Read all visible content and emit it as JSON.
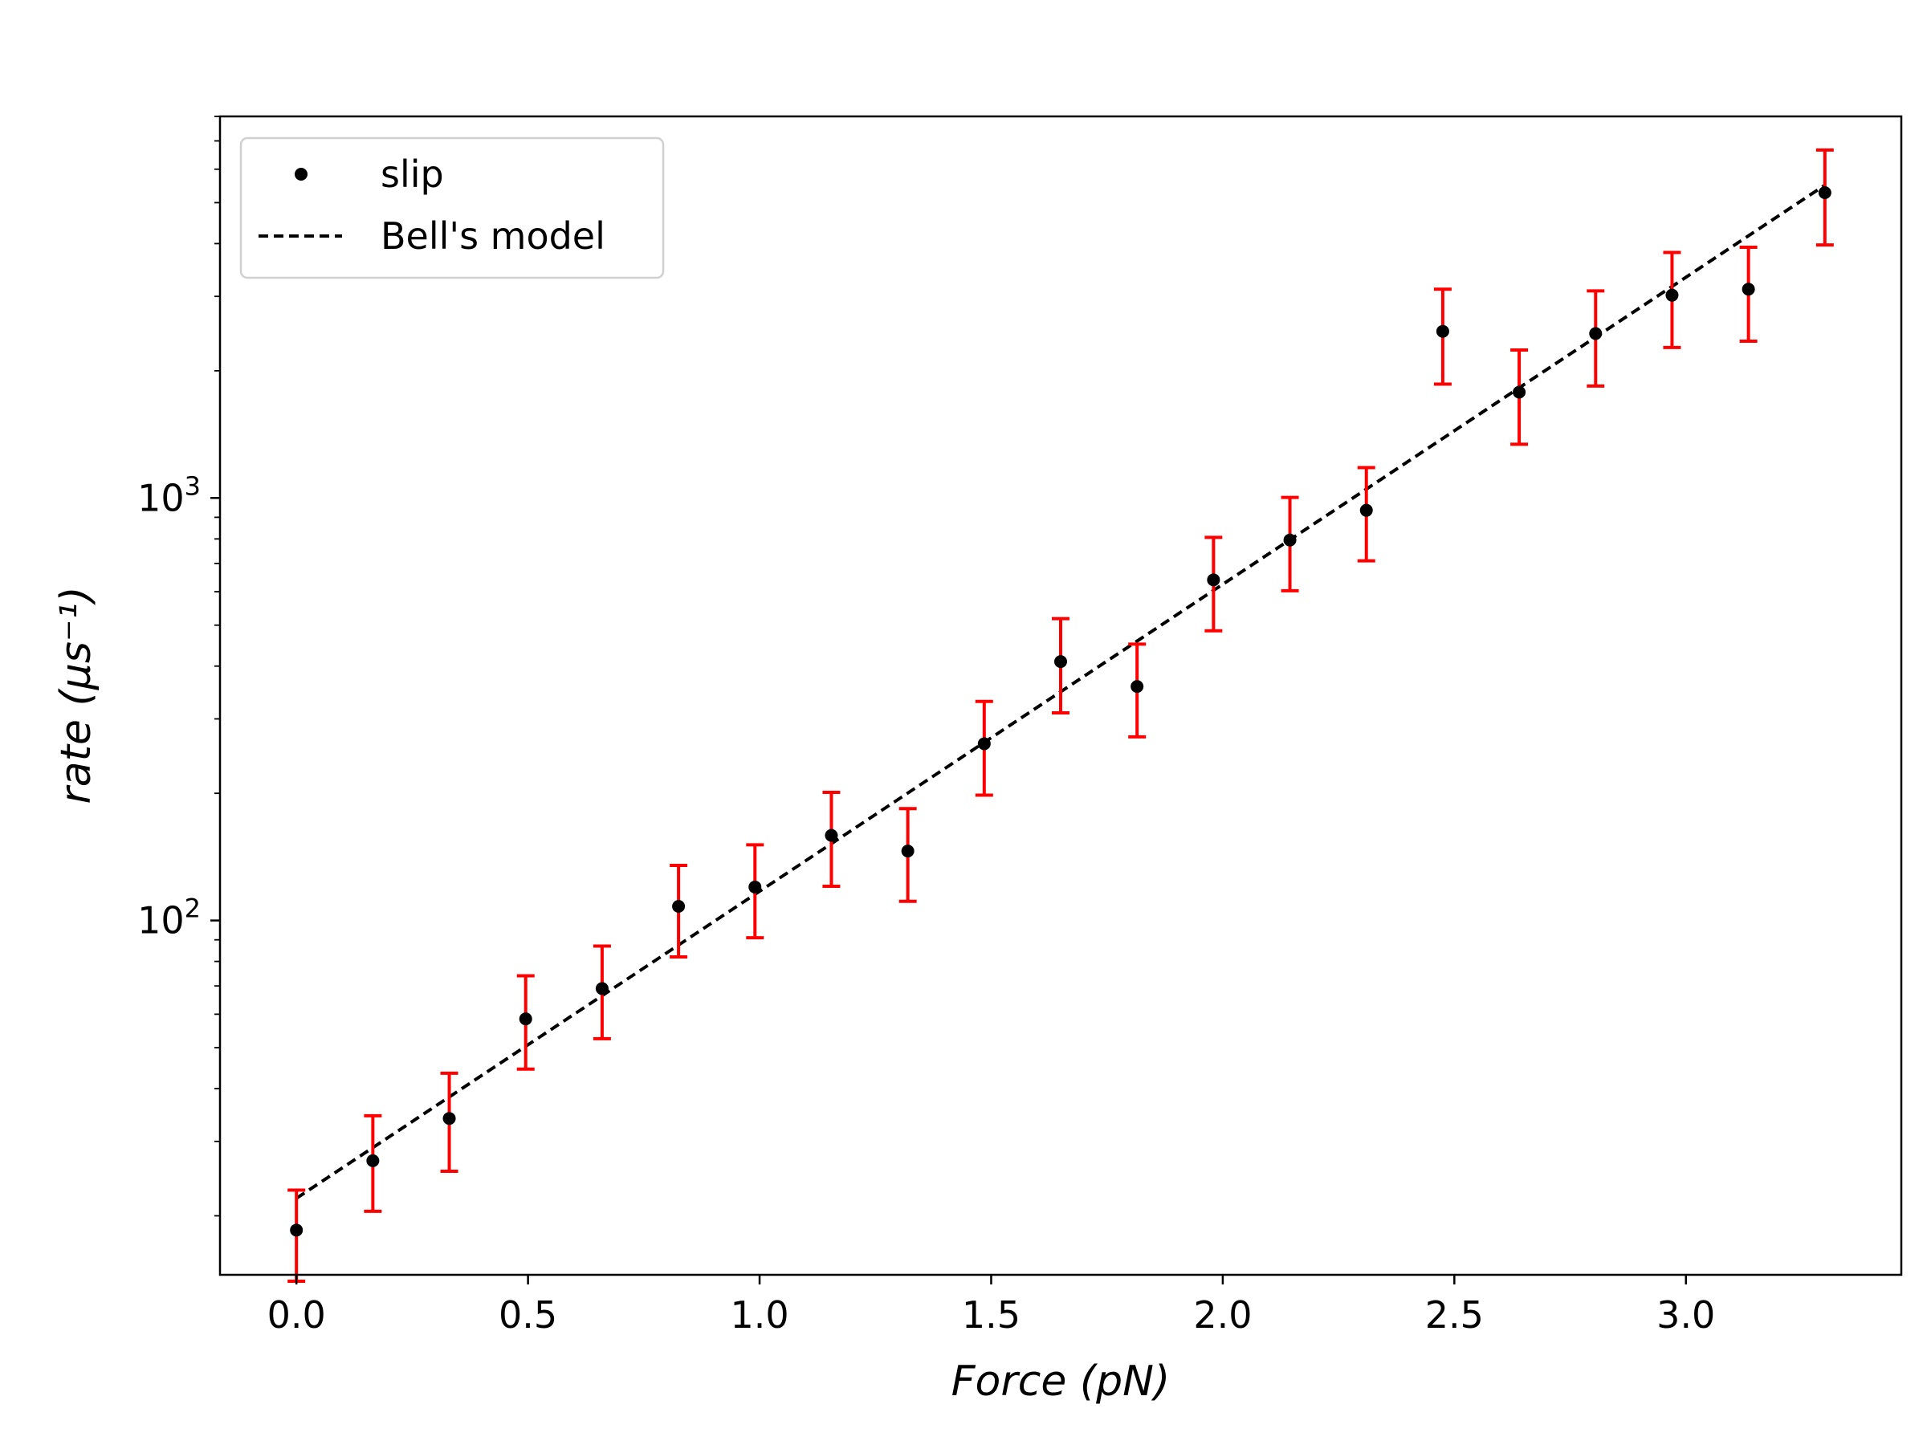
{
  "chart_data": {
    "type": "scatter",
    "xlabel": "Force (pN)",
    "ylabel": "rate (μs⁻¹)",
    "xlim": [
      -0.165,
      3.465
    ],
    "ylim": [
      14.5,
      8000
    ],
    "y_scale": "log",
    "grid": false,
    "legend_position": "top-left",
    "x_ticks": [
      {
        "value": 0.0,
        "label": "0.0"
      },
      {
        "value": 0.5,
        "label": "0.5"
      },
      {
        "value": 1.0,
        "label": "1.0"
      },
      {
        "value": 1.5,
        "label": "1.5"
      },
      {
        "value": 2.0,
        "label": "2.0"
      },
      {
        "value": 2.5,
        "label": "2.5"
      },
      {
        "value": 3.0,
        "label": "3.0"
      }
    ],
    "y_major_ticks": [
      {
        "value": 100,
        "base": "10",
        "exponent": "2"
      },
      {
        "value": 1000,
        "base": "10",
        "exponent": "3"
      }
    ],
    "colors": {
      "points": "#000000",
      "error_bars": "#ff0000",
      "model_line": "#000000"
    },
    "series": [
      {
        "name": "slip",
        "style": "points-with-error-bars",
        "points": [
          {
            "x": 0.0,
            "y": 18.5,
            "err_low": 14.0,
            "err_high": 23.0
          },
          {
            "x": 0.165,
            "y": 27.0,
            "err_low": 20.5,
            "err_high": 34.5
          },
          {
            "x": 0.33,
            "y": 34.0,
            "err_low": 25.5,
            "err_high": 43.5
          },
          {
            "x": 0.495,
            "y": 58.5,
            "err_low": 44.5,
            "err_high": 74.0
          },
          {
            "x": 0.66,
            "y": 69.0,
            "err_low": 52.5,
            "err_high": 87.0
          },
          {
            "x": 0.825,
            "y": 108.0,
            "err_low": 82.0,
            "err_high": 135.0
          },
          {
            "x": 0.99,
            "y": 120.0,
            "err_low": 91.0,
            "err_high": 151.0
          },
          {
            "x": 1.155,
            "y": 159.0,
            "err_low": 120.5,
            "err_high": 201.0
          },
          {
            "x": 1.32,
            "y": 146.0,
            "err_low": 111.0,
            "err_high": 184.0
          },
          {
            "x": 1.485,
            "y": 262.0,
            "err_low": 198.0,
            "err_high": 330.0
          },
          {
            "x": 1.65,
            "y": 410.0,
            "err_low": 310.0,
            "err_high": 518.0
          },
          {
            "x": 1.815,
            "y": 358.0,
            "err_low": 272.0,
            "err_high": 451.0
          },
          {
            "x": 1.98,
            "y": 640.0,
            "err_low": 485.0,
            "err_high": 807.0
          },
          {
            "x": 2.145,
            "y": 795.0,
            "err_low": 603.0,
            "err_high": 1003.0
          },
          {
            "x": 2.31,
            "y": 935.0,
            "err_low": 710.0,
            "err_high": 1180.0
          },
          {
            "x": 2.475,
            "y": 2480.0,
            "err_low": 1860.0,
            "err_high": 3120.0
          },
          {
            "x": 2.64,
            "y": 1780.0,
            "err_low": 1340.0,
            "err_high": 2240.0
          },
          {
            "x": 2.805,
            "y": 2450.0,
            "err_low": 1840.0,
            "err_high": 3090.0
          },
          {
            "x": 2.97,
            "y": 3020.0,
            "err_low": 2270.0,
            "err_high": 3810.0
          },
          {
            "x": 3.135,
            "y": 3120.0,
            "err_low": 2350.0,
            "err_high": 3920.0
          },
          {
            "x": 3.3,
            "y": 5280.0,
            "err_low": 3970.0,
            "err_high": 6660.0
          }
        ]
      },
      {
        "name": "Bell's model",
        "style": "dashed-line",
        "x": [
          0.0,
          3.3
        ],
        "y": [
          22.0,
          5500.0
        ]
      }
    ]
  }
}
